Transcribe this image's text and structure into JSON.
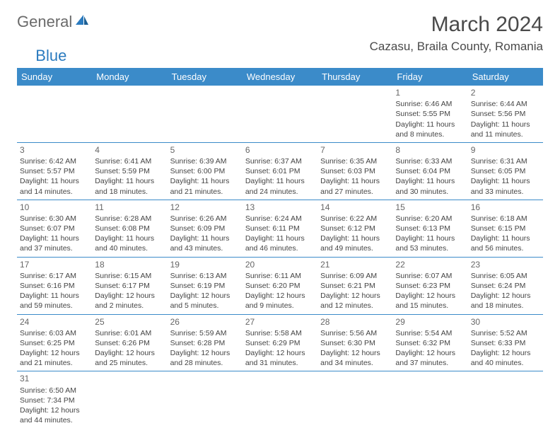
{
  "logo": {
    "text1": "General",
    "text2": "Blue"
  },
  "title": "March 2024",
  "location": "Cazasu, Braila County, Romania",
  "dayHeaders": [
    "Sunday",
    "Monday",
    "Tuesday",
    "Wednesday",
    "Thursday",
    "Friday",
    "Saturday"
  ],
  "colors": {
    "headerBg": "#3b8bc9",
    "headerText": "#ffffff",
    "borderColor": "#3b8bc9",
    "logoBlue": "#2b7bbf"
  },
  "weeks": [
    [
      null,
      null,
      null,
      null,
      null,
      {
        "d": "1",
        "sr": "Sunrise: 6:46 AM",
        "ss": "Sunset: 5:55 PM",
        "dl": "Daylight: 11 hours and 8 minutes."
      },
      {
        "d": "2",
        "sr": "Sunrise: 6:44 AM",
        "ss": "Sunset: 5:56 PM",
        "dl": "Daylight: 11 hours and 11 minutes."
      }
    ],
    [
      {
        "d": "3",
        "sr": "Sunrise: 6:42 AM",
        "ss": "Sunset: 5:57 PM",
        "dl": "Daylight: 11 hours and 14 minutes."
      },
      {
        "d": "4",
        "sr": "Sunrise: 6:41 AM",
        "ss": "Sunset: 5:59 PM",
        "dl": "Daylight: 11 hours and 18 minutes."
      },
      {
        "d": "5",
        "sr": "Sunrise: 6:39 AM",
        "ss": "Sunset: 6:00 PM",
        "dl": "Daylight: 11 hours and 21 minutes."
      },
      {
        "d": "6",
        "sr": "Sunrise: 6:37 AM",
        "ss": "Sunset: 6:01 PM",
        "dl": "Daylight: 11 hours and 24 minutes."
      },
      {
        "d": "7",
        "sr": "Sunrise: 6:35 AM",
        "ss": "Sunset: 6:03 PM",
        "dl": "Daylight: 11 hours and 27 minutes."
      },
      {
        "d": "8",
        "sr": "Sunrise: 6:33 AM",
        "ss": "Sunset: 6:04 PM",
        "dl": "Daylight: 11 hours and 30 minutes."
      },
      {
        "d": "9",
        "sr": "Sunrise: 6:31 AM",
        "ss": "Sunset: 6:05 PM",
        "dl": "Daylight: 11 hours and 33 minutes."
      }
    ],
    [
      {
        "d": "10",
        "sr": "Sunrise: 6:30 AM",
        "ss": "Sunset: 6:07 PM",
        "dl": "Daylight: 11 hours and 37 minutes."
      },
      {
        "d": "11",
        "sr": "Sunrise: 6:28 AM",
        "ss": "Sunset: 6:08 PM",
        "dl": "Daylight: 11 hours and 40 minutes."
      },
      {
        "d": "12",
        "sr": "Sunrise: 6:26 AM",
        "ss": "Sunset: 6:09 PM",
        "dl": "Daylight: 11 hours and 43 minutes."
      },
      {
        "d": "13",
        "sr": "Sunrise: 6:24 AM",
        "ss": "Sunset: 6:11 PM",
        "dl": "Daylight: 11 hours and 46 minutes."
      },
      {
        "d": "14",
        "sr": "Sunrise: 6:22 AM",
        "ss": "Sunset: 6:12 PM",
        "dl": "Daylight: 11 hours and 49 minutes."
      },
      {
        "d": "15",
        "sr": "Sunrise: 6:20 AM",
        "ss": "Sunset: 6:13 PM",
        "dl": "Daylight: 11 hours and 53 minutes."
      },
      {
        "d": "16",
        "sr": "Sunrise: 6:18 AM",
        "ss": "Sunset: 6:15 PM",
        "dl": "Daylight: 11 hours and 56 minutes."
      }
    ],
    [
      {
        "d": "17",
        "sr": "Sunrise: 6:17 AM",
        "ss": "Sunset: 6:16 PM",
        "dl": "Daylight: 11 hours and 59 minutes."
      },
      {
        "d": "18",
        "sr": "Sunrise: 6:15 AM",
        "ss": "Sunset: 6:17 PM",
        "dl": "Daylight: 12 hours and 2 minutes."
      },
      {
        "d": "19",
        "sr": "Sunrise: 6:13 AM",
        "ss": "Sunset: 6:19 PM",
        "dl": "Daylight: 12 hours and 5 minutes."
      },
      {
        "d": "20",
        "sr": "Sunrise: 6:11 AM",
        "ss": "Sunset: 6:20 PM",
        "dl": "Daylight: 12 hours and 9 minutes."
      },
      {
        "d": "21",
        "sr": "Sunrise: 6:09 AM",
        "ss": "Sunset: 6:21 PM",
        "dl": "Daylight: 12 hours and 12 minutes."
      },
      {
        "d": "22",
        "sr": "Sunrise: 6:07 AM",
        "ss": "Sunset: 6:23 PM",
        "dl": "Daylight: 12 hours and 15 minutes."
      },
      {
        "d": "23",
        "sr": "Sunrise: 6:05 AM",
        "ss": "Sunset: 6:24 PM",
        "dl": "Daylight: 12 hours and 18 minutes."
      }
    ],
    [
      {
        "d": "24",
        "sr": "Sunrise: 6:03 AM",
        "ss": "Sunset: 6:25 PM",
        "dl": "Daylight: 12 hours and 21 minutes."
      },
      {
        "d": "25",
        "sr": "Sunrise: 6:01 AM",
        "ss": "Sunset: 6:26 PM",
        "dl": "Daylight: 12 hours and 25 minutes."
      },
      {
        "d": "26",
        "sr": "Sunrise: 5:59 AM",
        "ss": "Sunset: 6:28 PM",
        "dl": "Daylight: 12 hours and 28 minutes."
      },
      {
        "d": "27",
        "sr": "Sunrise: 5:58 AM",
        "ss": "Sunset: 6:29 PM",
        "dl": "Daylight: 12 hours and 31 minutes."
      },
      {
        "d": "28",
        "sr": "Sunrise: 5:56 AM",
        "ss": "Sunset: 6:30 PM",
        "dl": "Daylight: 12 hours and 34 minutes."
      },
      {
        "d": "29",
        "sr": "Sunrise: 5:54 AM",
        "ss": "Sunset: 6:32 PM",
        "dl": "Daylight: 12 hours and 37 minutes."
      },
      {
        "d": "30",
        "sr": "Sunrise: 5:52 AM",
        "ss": "Sunset: 6:33 PM",
        "dl": "Daylight: 12 hours and 40 minutes."
      }
    ],
    [
      {
        "d": "31",
        "sr": "Sunrise: 6:50 AM",
        "ss": "Sunset: 7:34 PM",
        "dl": "Daylight: 12 hours and 44 minutes."
      },
      null,
      null,
      null,
      null,
      null,
      null
    ]
  ]
}
